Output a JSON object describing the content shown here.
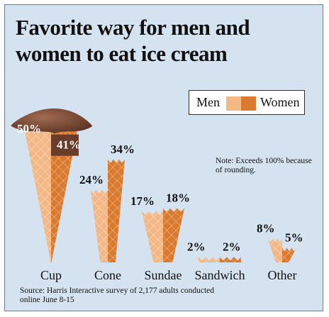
{
  "title": "Favorite way for men and women to eat ice cream",
  "note": "Note: Exceeds 100% because of rounding.",
  "source": "Source: Harris Interactive survey of 2,177 adults conducted online June 8-15",
  "colors": {
    "men": "#f4b886",
    "women": "#d97a2f",
    "background": "#d5e2ef",
    "scoop": "#7a4a35"
  },
  "chart_data": {
    "type": "bar",
    "title": "Favorite way for men and women to eat ice cream",
    "categories": [
      "Cup",
      "Cone",
      "Sundae",
      "Sandwich",
      "Other"
    ],
    "series": [
      {
        "name": "Men",
        "values": [
          50,
          24,
          17,
          2,
          8
        ]
      },
      {
        "name": "Women",
        "values": [
          41,
          34,
          18,
          2,
          5
        ]
      }
    ],
    "value_suffix": "%",
    "ylim": [
      0,
      50
    ],
    "legend": "top-right",
    "grid": false
  }
}
